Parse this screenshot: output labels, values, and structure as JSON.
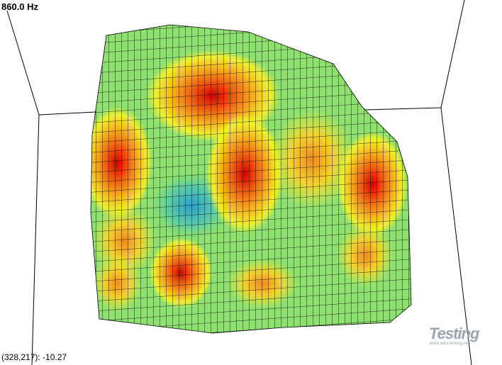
{
  "header": {
    "frequency": "860.0 Hz"
  },
  "status": {
    "cursor": "(328,217): -10.27"
  },
  "watermark": {
    "logo": "Testing",
    "site": "www.auto-testing.net"
  }
}
